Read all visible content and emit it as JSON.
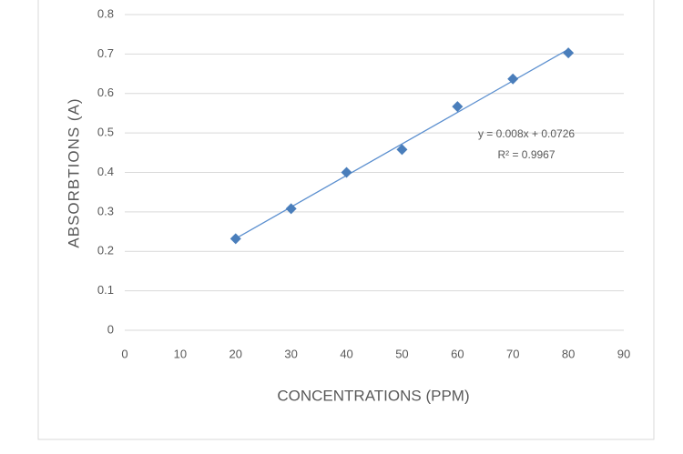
{
  "chart_data": {
    "type": "scatter",
    "x_label": "CONCENTRATIONS (PPM)",
    "y_label": "ABSORBTIONS (A)",
    "series": [
      {
        "name": "Absorbtions",
        "color": "#4a7ebb",
        "x": [
          20,
          30,
          40,
          50,
          60,
          70,
          80
        ],
        "values": [
          0.232,
          0.308,
          0.4,
          0.458,
          0.567,
          0.637,
          0.703
        ]
      }
    ],
    "trendline": {
      "type": "linear",
      "color": "#5b8fcf"
    },
    "annotations": [
      "y = 0.008x + 0.0726",
      "R² = 0.9967"
    ],
    "xlim": [
      0,
      90
    ],
    "xticks": [
      0,
      10,
      20,
      30,
      40,
      50,
      60,
      70,
      80,
      90
    ],
    "ylim": [
      0,
      0.8
    ],
    "yticks": [
      0,
      0.1,
      0.2,
      0.3,
      0.4,
      0.5,
      0.6,
      0.7,
      0.8
    ],
    "grid": true
  }
}
